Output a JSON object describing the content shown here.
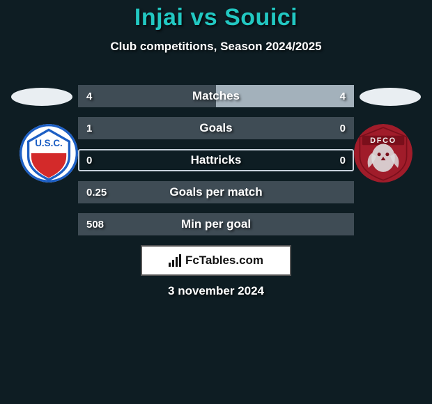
{
  "background_color": "#0e1d23",
  "title": {
    "text": "Injai vs Souici",
    "color": "#22c8c2",
    "fontsize": 34
  },
  "subtitle": {
    "text": "Club competitions, Season 2024/2025",
    "color": "#ffffff",
    "fontsize": 17
  },
  "date": {
    "text": "3 november 2024",
    "color": "#ffffff"
  },
  "left_player": {
    "oval_color": "#e9eef2",
    "logo": {
      "bg": "#ffffff",
      "ring": "#1d5fc4",
      "inner": "#d32a2a",
      "letters": "U.S.C.",
      "letters_color": "#1d5fc4"
    }
  },
  "right_player": {
    "oval_color": "#e9eef2",
    "logo": {
      "bg": "#a01c2a",
      "dark": "#7a0f1b",
      "banner_text": "DFCO",
      "banner_text_color": "#f2f2f2",
      "owl_color": "#dddddd"
    }
  },
  "stats": {
    "track_border": "#c8d2dc",
    "left_fill_color": "#3f4c55",
    "right_fill_color": "#a3b1bb",
    "label_color": "#ffffff",
    "label_fontsize": 17,
    "value_color": "#ffffff",
    "rows": [
      {
        "label": "Matches",
        "left": "4",
        "right": "4",
        "left_pct": 50,
        "right_pct": 50
      },
      {
        "label": "Goals",
        "left": "1",
        "right": "0",
        "left_pct": 100,
        "right_pct": 0
      },
      {
        "label": "Hattricks",
        "left": "0",
        "right": "0",
        "left_pct": 0,
        "right_pct": 0
      },
      {
        "label": "Goals per match",
        "left": "0.25",
        "right": "",
        "left_pct": 100,
        "right_pct": 0
      },
      {
        "label": "Min per goal",
        "left": "508",
        "right": "",
        "left_pct": 100,
        "right_pct": 0
      }
    ]
  },
  "watermark": {
    "text": "FcTables.com",
    "fg": "#111111",
    "bg": "#ffffff",
    "border": "#555555"
  }
}
